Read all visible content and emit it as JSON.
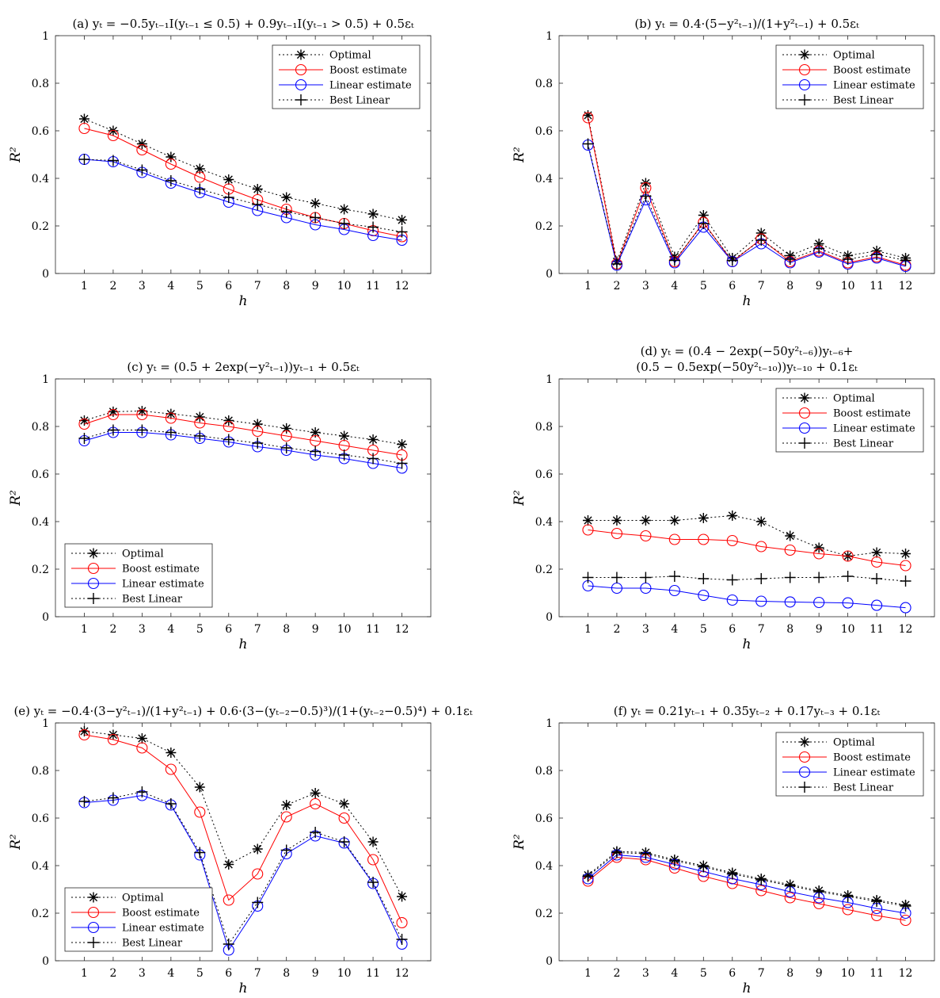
{
  "figure": {
    "line_styles": {
      "Optimal": {
        "color": "#000000",
        "dash": "2,3",
        "marker": "asterisk"
      },
      "Boost estimate": {
        "color": "#ff0000",
        "dash": "",
        "marker": "circle"
      },
      "Linear estimate": {
        "color": "#0000ff",
        "dash": "",
        "marker": "circle"
      },
      "Best Linear": {
        "color": "#000000",
        "dash": "2,3",
        "marker": "plus"
      }
    }
  },
  "chart_data": [
    {
      "type": "line",
      "panel": "a",
      "title_lines": [
        "(a) yₜ = −0.5yₜ₋₁I(yₜ₋₁ ≤ 0.5) + 0.9yₜ₋₁I(yₜ₋₁ > 0.5) + 0.5εₜ"
      ],
      "xlabel": "h",
      "ylabel": "R²",
      "x": [
        1,
        2,
        3,
        4,
        5,
        6,
        7,
        8,
        9,
        10,
        11,
        12
      ],
      "xlim": [
        0,
        13
      ],
      "ylim": [
        0,
        1
      ],
      "yticks": [
        "0",
        "0.2",
        "0.4",
        "0.6",
        "0.8",
        "1"
      ],
      "legend_position": "top-right",
      "series": [
        {
          "name": "Optimal",
          "values": [
            0.65,
            0.6,
            0.545,
            0.49,
            0.44,
            0.395,
            0.355,
            0.32,
            0.295,
            0.27,
            0.25,
            0.225
          ]
        },
        {
          "name": "Boost estimate",
          "values": [
            0.61,
            0.58,
            0.52,
            0.46,
            0.405,
            0.355,
            0.31,
            0.27,
            0.235,
            0.21,
            0.18,
            0.155
          ]
        },
        {
          "name": "Linear estimate",
          "values": [
            0.48,
            0.47,
            0.425,
            0.38,
            0.34,
            0.3,
            0.265,
            0.235,
            0.205,
            0.185,
            0.16,
            0.14
          ]
        },
        {
          "name": "Best Linear",
          "values": [
            0.48,
            0.475,
            0.435,
            0.39,
            0.355,
            0.32,
            0.29,
            0.26,
            0.235,
            0.21,
            0.195,
            0.175
          ]
        }
      ]
    },
    {
      "type": "line",
      "panel": "b",
      "title_lines": [
        "(b) yₜ = 0.4·(5−y²ₜ₋₁)/(1+y²ₜ₋₁) + 0.5εₜ"
      ],
      "xlabel": "h",
      "ylabel": "R²",
      "x": [
        1,
        2,
        3,
        4,
        5,
        6,
        7,
        8,
        9,
        10,
        11,
        12
      ],
      "xlim": [
        0,
        13
      ],
      "ylim": [
        0,
        1
      ],
      "yticks": [
        "0",
        "0.2",
        "0.4",
        "0.6",
        "0.8",
        "1"
      ],
      "legend_position": "top-right",
      "series": [
        {
          "name": "Optimal",
          "values": [
            0.665,
            0.05,
            0.38,
            0.07,
            0.245,
            0.065,
            0.17,
            0.075,
            0.125,
            0.075,
            0.095,
            0.065
          ]
        },
        {
          "name": "Boost estimate",
          "values": [
            0.655,
            0.04,
            0.36,
            0.05,
            0.215,
            0.05,
            0.145,
            0.05,
            0.095,
            0.045,
            0.07,
            0.035
          ]
        },
        {
          "name": "Linear estimate",
          "values": [
            0.54,
            0.035,
            0.31,
            0.045,
            0.195,
            0.05,
            0.125,
            0.045,
            0.09,
            0.04,
            0.065,
            0.03
          ]
        },
        {
          "name": "Best Linear",
          "values": [
            0.545,
            0.04,
            0.325,
            0.055,
            0.21,
            0.055,
            0.14,
            0.06,
            0.105,
            0.06,
            0.08,
            0.055
          ]
        }
      ]
    },
    {
      "type": "line",
      "panel": "c",
      "title_lines": [
        "(c) yₜ = (0.5 + 2exp(−y²ₜ₋₁))yₜ₋₁ + 0.5εₜ"
      ],
      "xlabel": "h",
      "ylabel": "R²",
      "x": [
        1,
        2,
        3,
        4,
        5,
        6,
        7,
        8,
        9,
        10,
        11,
        12
      ],
      "xlim": [
        0,
        13
      ],
      "ylim": [
        0,
        1
      ],
      "yticks": [
        "0",
        "0.2",
        "0.4",
        "0.6",
        "0.8",
        "1"
      ],
      "legend_position": "bottom-left",
      "series": [
        {
          "name": "Optimal",
          "values": [
            0.825,
            0.862,
            0.865,
            0.853,
            0.84,
            0.825,
            0.81,
            0.792,
            0.775,
            0.76,
            0.745,
            0.725
          ]
        },
        {
          "name": "Boost estimate",
          "values": [
            0.81,
            0.85,
            0.85,
            0.835,
            0.815,
            0.8,
            0.78,
            0.76,
            0.74,
            0.72,
            0.7,
            0.68
          ]
        },
        {
          "name": "Linear estimate",
          "values": [
            0.74,
            0.775,
            0.775,
            0.765,
            0.75,
            0.735,
            0.715,
            0.7,
            0.68,
            0.665,
            0.645,
            0.625
          ]
        },
        {
          "name": "Best Linear",
          "values": [
            0.75,
            0.785,
            0.785,
            0.775,
            0.76,
            0.745,
            0.73,
            0.71,
            0.695,
            0.68,
            0.665,
            0.645
          ]
        }
      ]
    },
    {
      "type": "line",
      "panel": "d",
      "title_lines": [
        "(d) yₜ = (0.4 − 2exp(−50y²ₜ₋₆))yₜ₋₆+",
        "(0.5 − 0.5exp(−50y²ₜ₋₁₀))yₜ₋₁₀ + 0.1εₜ"
      ],
      "xlabel": "h",
      "ylabel": "R²",
      "x": [
        1,
        2,
        3,
        4,
        5,
        6,
        7,
        8,
        9,
        10,
        11,
        12
      ],
      "xlim": [
        0,
        13
      ],
      "ylim": [
        0,
        1
      ],
      "yticks": [
        "0",
        "0.2",
        "0.4",
        "0.6",
        "0.8",
        "1"
      ],
      "legend_position": "top-right",
      "series": [
        {
          "name": "Optimal",
          "values": [
            0.405,
            0.405,
            0.405,
            0.405,
            0.415,
            0.425,
            0.4,
            0.34,
            0.29,
            0.255,
            0.27,
            0.265
          ]
        },
        {
          "name": "Boost estimate",
          "values": [
            0.365,
            0.35,
            0.34,
            0.325,
            0.325,
            0.32,
            0.295,
            0.28,
            0.265,
            0.255,
            0.23,
            0.215
          ]
        },
        {
          "name": "Linear estimate",
          "values": [
            0.13,
            0.12,
            0.12,
            0.11,
            0.09,
            0.07,
            0.065,
            0.062,
            0.06,
            0.058,
            0.048,
            0.038
          ]
        },
        {
          "name": "Best Linear",
          "values": [
            0.165,
            0.165,
            0.165,
            0.17,
            0.16,
            0.155,
            0.16,
            0.165,
            0.165,
            0.17,
            0.16,
            0.15
          ]
        }
      ]
    },
    {
      "type": "line",
      "panel": "e",
      "title_lines": [
        "(e) yₜ = −0.4·(3−y²ₜ₋₁)/(1+y²ₜ₋₁) + 0.6·(3−(yₜ₋₂−0.5)³)/(1+(yₜ₋₂−0.5)⁴) + 0.1εₜ"
      ],
      "xlabel": "h",
      "ylabel": "R²",
      "x": [
        1,
        2,
        3,
        4,
        5,
        6,
        7,
        8,
        9,
        10,
        11,
        12
      ],
      "xlim": [
        0,
        13
      ],
      "ylim": [
        0,
        1
      ],
      "yticks": [
        "0",
        "0.2",
        "0.4",
        "0.6",
        "0.8",
        "1"
      ],
      "legend_position": "bottom-left",
      "series": [
        {
          "name": "Optimal",
          "values": [
            0.965,
            0.95,
            0.935,
            0.875,
            0.73,
            0.405,
            0.47,
            0.655,
            0.705,
            0.66,
            0.5,
            0.27
          ]
        },
        {
          "name": "Boost estimate",
          "values": [
            0.95,
            0.93,
            0.895,
            0.805,
            0.625,
            0.255,
            0.365,
            0.605,
            0.66,
            0.6,
            0.425,
            0.16
          ]
        },
        {
          "name": "Linear estimate",
          "values": [
            0.665,
            0.675,
            0.695,
            0.655,
            0.445,
            0.045,
            0.23,
            0.45,
            0.525,
            0.495,
            0.325,
            0.07
          ]
        },
        {
          "name": "Best Linear",
          "values": [
            0.67,
            0.685,
            0.71,
            0.66,
            0.455,
            0.07,
            0.245,
            0.465,
            0.54,
            0.5,
            0.33,
            0.09
          ]
        }
      ]
    },
    {
      "type": "line",
      "panel": "f",
      "title_lines": [
        "(f) yₜ = 0.21yₜ₋₁ + 0.35yₜ₋₂ + 0.17yₜ₋₃ + 0.1εₜ"
      ],
      "xlabel": "h",
      "ylabel": "R²",
      "x": [
        1,
        2,
        3,
        4,
        5,
        6,
        7,
        8,
        9,
        10,
        11,
        12
      ],
      "xlim": [
        0,
        13
      ],
      "ylim": [
        0,
        1
      ],
      "yticks": [
        "0",
        "0.2",
        "0.4",
        "0.6",
        "0.8",
        "1"
      ],
      "legend_position": "top-right",
      "series": [
        {
          "name": "Optimal",
          "values": [
            0.36,
            0.46,
            0.455,
            0.425,
            0.4,
            0.37,
            0.345,
            0.32,
            0.295,
            0.275,
            0.255,
            0.235
          ]
        },
        {
          "name": "Boost estimate",
          "values": [
            0.335,
            0.435,
            0.425,
            0.39,
            0.355,
            0.325,
            0.295,
            0.265,
            0.24,
            0.215,
            0.19,
            0.17
          ]
        },
        {
          "name": "Linear estimate",
          "values": [
            0.345,
            0.445,
            0.435,
            0.405,
            0.375,
            0.345,
            0.32,
            0.29,
            0.265,
            0.245,
            0.22,
            0.2
          ]
        },
        {
          "name": "Best Linear",
          "values": [
            0.355,
            0.455,
            0.45,
            0.42,
            0.395,
            0.365,
            0.34,
            0.315,
            0.29,
            0.27,
            0.25,
            0.23
          ]
        }
      ]
    }
  ]
}
